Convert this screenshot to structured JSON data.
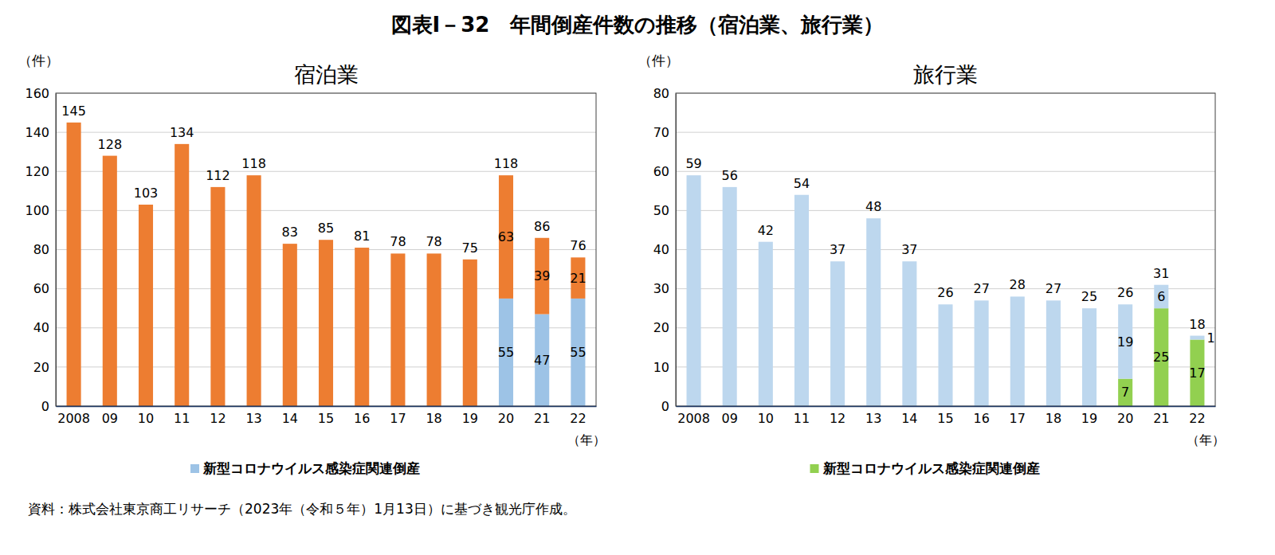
{
  "title": "図表Ⅰ－32　年間倒産件数の推移（宿泊業、旅行業）",
  "source": "資料：株式会社東京商工リサーチ（2023年（令和５年）1月13日）に基づき観光庁作成。",
  "chart_data": [
    {
      "type": "bar",
      "title": "宿泊業",
      "y_label": "（件）",
      "x_label": "（年）",
      "categories": [
        "2008",
        "09",
        "10",
        "11",
        "12",
        "13",
        "14",
        "15",
        "16",
        "17",
        "18",
        "19",
        "20",
        "21",
        "22"
      ],
      "series": [
        {
          "name": "新型コロナウイルス感染症関連倒産",
          "color": "#9dc3e6",
          "values": [
            null,
            null,
            null,
            null,
            null,
            null,
            null,
            null,
            null,
            null,
            null,
            null,
            55,
            47,
            55
          ]
        },
        {
          "color": "#ed7d31",
          "values": [
            145,
            128,
            103,
            134,
            112,
            118,
            83,
            85,
            81,
            78,
            78,
            75,
            63,
            39,
            21
          ]
        }
      ],
      "totals": [
        145,
        128,
        103,
        134,
        112,
        118,
        83,
        85,
        81,
        78,
        78,
        75,
        118,
        86,
        76
      ],
      "ylim": [
        0,
        160
      ],
      "yticks": [
        0,
        20,
        40,
        60,
        80,
        100,
        120,
        140,
        160
      ],
      "grid": true,
      "stacked": true,
      "data_labels": true,
      "legend": "bottom"
    },
    {
      "type": "bar",
      "title": "旅行業",
      "y_label": "（件）",
      "x_label": "（年）",
      "categories": [
        "2008",
        "09",
        "10",
        "11",
        "12",
        "13",
        "14",
        "15",
        "16",
        "17",
        "18",
        "19",
        "20",
        "21",
        "22"
      ],
      "series": [
        {
          "name": "新型コロナウイルス感染症関連倒産",
          "color": "#92d050",
          "values": [
            null,
            null,
            null,
            null,
            null,
            null,
            null,
            null,
            null,
            null,
            null,
            null,
            7,
            25,
            17
          ]
        },
        {
          "color": "#bdd7ee",
          "values": [
            59,
            56,
            42,
            54,
            37,
            48,
            37,
            26,
            27,
            28,
            27,
            25,
            19,
            6,
            1
          ]
        }
      ],
      "totals": [
        59,
        56,
        42,
        54,
        37,
        48,
        37,
        26,
        27,
        28,
        27,
        25,
        26,
        31,
        18
      ],
      "ylim": [
        0,
        80
      ],
      "yticks": [
        0,
        10,
        20,
        30,
        40,
        50,
        60,
        70,
        80
      ],
      "grid": true,
      "stacked": true,
      "data_labels": true,
      "legend": "bottom"
    }
  ]
}
